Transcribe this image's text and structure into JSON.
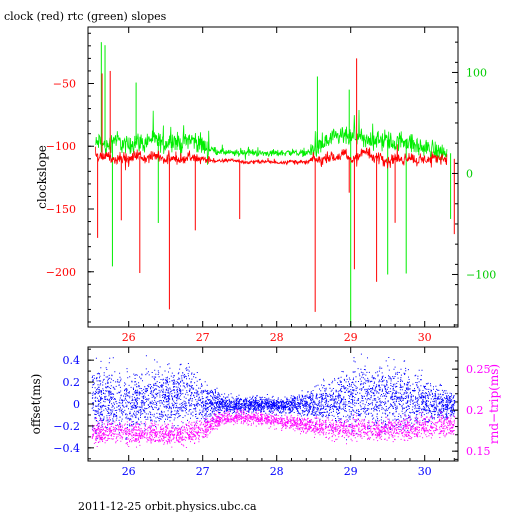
{
  "page": {
    "title": "clock (red) rtc (green) slopes",
    "footer": "2011-12-25  orbit.physics.ubc.ca"
  },
  "colors": {
    "clock": "#ff0000",
    "rtc": "#00ee00",
    "offset": "#0000ff",
    "rndtrip": "#ff00ff",
    "axis": "#000000"
  },
  "chart_data": [
    {
      "type": "line",
      "title": "clock (red) rtc (green) slopes",
      "xlabel": "",
      "ylabel": "clockslope",
      "y2label": "",
      "xlim": [
        25.45,
        30.45
      ],
      "ylim": [
        -244,
        -5
      ],
      "y2lim": [
        -152,
        145
      ],
      "xticks": [
        26,
        27,
        28,
        29,
        30
      ],
      "yticks": [
        -50,
        -100,
        -150,
        -200
      ],
      "y2ticks": [
        100,
        0,
        -100
      ],
      "grid": false,
      "legend": "none",
      "series": [
        {
          "name": "clock",
          "axis": "left",
          "color": "#ff0000",
          "x": [
            25.55,
            25.6,
            25.7,
            25.8,
            25.9,
            26.0,
            26.1,
            26.2,
            26.3,
            26.4,
            26.5,
            26.6,
            26.7,
            26.8,
            26.9,
            27.0,
            27.2,
            27.4,
            27.6,
            27.8,
            28.0,
            28.2,
            28.4,
            28.5,
            28.6,
            28.7,
            28.8,
            28.9,
            29.0,
            29.1,
            29.2,
            29.3,
            29.4,
            29.5,
            29.6,
            29.7,
            29.8,
            29.9,
            30.0,
            30.1,
            30.2,
            30.3
          ],
          "y": [
            -107,
            -109,
            -106,
            -111,
            -108,
            -112,
            -106,
            -110,
            -109,
            -107,
            -111,
            -108,
            -112,
            -109,
            -110,
            -110,
            -112,
            -111,
            -113,
            -112,
            -113,
            -112,
            -113,
            -110,
            -112,
            -108,
            -110,
            -106,
            -111,
            -108,
            -104,
            -110,
            -107,
            -112,
            -109,
            -111,
            -108,
            -112,
            -110,
            -111,
            -109,
            -110
          ],
          "spikes": [
            {
              "x": 25.58,
              "y": -173
            },
            {
              "x": 25.64,
              "y": -42
            },
            {
              "x": 25.75,
              "y": -40
            },
            {
              "x": 25.9,
              "y": -159
            },
            {
              "x": 26.15,
              "y": -201
            },
            {
              "x": 26.55,
              "y": -230
            },
            {
              "x": 26.9,
              "y": -167
            },
            {
              "x": 27.5,
              "y": -158
            },
            {
              "x": 28.52,
              "y": -232
            },
            {
              "x": 28.98,
              "y": -137
            },
            {
              "x": 29.05,
              "y": -198
            },
            {
              "x": 29.08,
              "y": -30
            },
            {
              "x": 29.35,
              "y": -208
            },
            {
              "x": 29.6,
              "y": -161
            },
            {
              "x": 30.4,
              "y": -170
            }
          ]
        },
        {
          "name": "rtc",
          "axis": "right",
          "color": "#00ee00",
          "x": [
            25.55,
            25.6,
            25.7,
            25.8,
            25.9,
            26.0,
            26.1,
            26.2,
            26.3,
            26.4,
            26.5,
            26.6,
            26.7,
            26.8,
            26.9,
            27.0,
            27.2,
            27.4,
            27.6,
            27.8,
            28.0,
            28.2,
            28.4,
            28.5,
            28.6,
            28.7,
            28.8,
            28.9,
            29.0,
            29.1,
            29.2,
            29.3,
            29.4,
            29.5,
            29.6,
            29.7,
            29.8,
            29.9,
            30.0,
            30.1,
            30.2,
            30.3
          ],
          "y": [
            28,
            32,
            25,
            35,
            30,
            27,
            33,
            29,
            35,
            31,
            30,
            34,
            28,
            35,
            32,
            27,
            22,
            20,
            21,
            20,
            20,
            21,
            20,
            24,
            27,
            32,
            35,
            37,
            34,
            38,
            30,
            36,
            31,
            33,
            29,
            34,
            30,
            27,
            25,
            24,
            22,
            20
          ],
          "spikes": [
            {
              "x": 25.63,
              "y": 130
            },
            {
              "x": 25.68,
              "y": 127
            },
            {
              "x": 25.78,
              "y": -92
            },
            {
              "x": 26.4,
              "y": -49
            },
            {
              "x": 26.1,
              "y": 90
            },
            {
              "x": 28.55,
              "y": 96
            },
            {
              "x": 29.0,
              "y": -152
            },
            {
              "x": 28.98,
              "y": 83
            },
            {
              "x": 29.5,
              "y": -100
            },
            {
              "x": 29.75,
              "y": -99
            },
            {
              "x": 30.35,
              "y": -45
            }
          ]
        }
      ]
    },
    {
      "type": "scatter",
      "xlabel": "",
      "ylabel": "offset(ms)",
      "y2label": "rnd−trip(ms)",
      "xlim": [
        25.45,
        30.45
      ],
      "ylim": [
        -0.52,
        0.52
      ],
      "y2lim": [
        0.138,
        0.277
      ],
      "xticks": [
        26,
        27,
        28,
        29,
        30
      ],
      "yticks": [
        0.4,
        0.2,
        0,
        -0.2,
        -0.4
      ],
      "y2ticks": [
        0.25,
        0.2,
        0.15
      ],
      "grid": false,
      "legend": "none",
      "series": [
        {
          "name": "offset",
          "axis": "left",
          "color": "#0000ff",
          "x": [
            25.5,
            25.75,
            26.0,
            26.25,
            26.5,
            26.75,
            27.0,
            27.25,
            27.5,
            27.75,
            28.0,
            28.25,
            28.5,
            28.75,
            29.0,
            29.25,
            29.5,
            29.75,
            30.0,
            30.25,
            30.4
          ],
          "y": [
            0.05,
            0.03,
            -0.02,
            0.04,
            0.06,
            0.08,
            0.02,
            0.0,
            -0.01,
            0.0,
            -0.02,
            -0.01,
            0.0,
            0.03,
            0.05,
            0.08,
            0.06,
            0.05,
            0.02,
            0.0,
            -0.02
          ],
          "spread": [
            0.42,
            0.45,
            0.4,
            0.42,
            0.4,
            0.4,
            0.28,
            0.12,
            0.1,
            0.1,
            0.1,
            0.12,
            0.22,
            0.32,
            0.42,
            0.45,
            0.44,
            0.42,
            0.3,
            0.2,
            0.15
          ]
        },
        {
          "name": "rndtrip",
          "axis": "right",
          "color": "#ff00ff",
          "x": [
            25.5,
            25.75,
            26.0,
            26.25,
            26.5,
            26.75,
            27.0,
            27.25,
            27.5,
            27.75,
            28.0,
            28.25,
            28.5,
            28.75,
            29.0,
            29.25,
            29.5,
            29.75,
            30.0,
            30.25,
            30.4
          ],
          "y": [
            0.172,
            0.174,
            0.17,
            0.172,
            0.171,
            0.17,
            0.176,
            0.19,
            0.192,
            0.19,
            0.186,
            0.184,
            0.18,
            0.178,
            0.177,
            0.178,
            0.176,
            0.177,
            0.18,
            0.182,
            0.18
          ],
          "spread": [
            0.02,
            0.02,
            0.02,
            0.02,
            0.02,
            0.02,
            0.018,
            0.012,
            0.012,
            0.012,
            0.012,
            0.012,
            0.015,
            0.018,
            0.02,
            0.02,
            0.02,
            0.02,
            0.02,
            0.02,
            0.02
          ]
        }
      ]
    }
  ]
}
